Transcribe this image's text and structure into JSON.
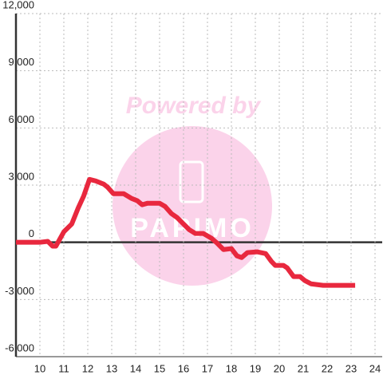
{
  "chart_data": {
    "type": "line",
    "watermark": [
      "Powered by",
      "PAPIMO"
    ],
    "x": [
      9,
      10,
      10.33,
      10.53,
      10.67,
      11,
      11.33,
      11.6,
      11.83,
      12.07,
      12.33,
      12.67,
      12.83,
      13.07,
      13.5,
      13.83,
      14.07,
      14.27,
      14.5,
      15,
      15.23,
      15.5,
      15.73,
      16,
      16.23,
      16.5,
      16.83,
      17.17,
      17.4,
      17.67,
      18,
      18.23,
      18.43,
      18.67,
      19.07,
      19.43,
      19.67,
      19.83,
      20.17,
      20.33,
      20.6,
      20.87,
      21.07,
      21.33,
      21.83,
      23.17
    ],
    "series": [
      {
        "color": "#e8283e",
        "values": [
          0,
          0,
          50,
          -200,
          -200,
          550,
          960,
          1800,
          2430,
          3300,
          3220,
          3050,
          2890,
          2550,
          2550,
          2300,
          2180,
          1970,
          2050,
          2050,
          1880,
          1500,
          1300,
          960,
          670,
          460,
          460,
          210,
          -40,
          -380,
          -330,
          -710,
          -800,
          -540,
          -500,
          -590,
          -1000,
          -1210,
          -1210,
          -1340,
          -1800,
          -1800,
          -2010,
          -2180,
          -2260,
          -2260
        ]
      }
    ],
    "xlim": [
      9,
      24.3
    ],
    "xticks": [
      10,
      11,
      12,
      13,
      14,
      15,
      16,
      17,
      18,
      19,
      20,
      21,
      22,
      23,
      24
    ],
    "ylim": [
      -6000,
      12000
    ],
    "yticks": [
      {
        "value": -6000,
        "label": "-6,000"
      },
      {
        "value": -3000,
        "label": "-3,000"
      },
      0,
      {
        "value": 3000,
        "label": "3,000"
      },
      {
        "value": 6000,
        "label": "6,000"
      },
      {
        "value": 9000,
        "label": "9,000"
      },
      {
        "value": 12000,
        "label": "12,000"
      }
    ],
    "grid": true
  }
}
